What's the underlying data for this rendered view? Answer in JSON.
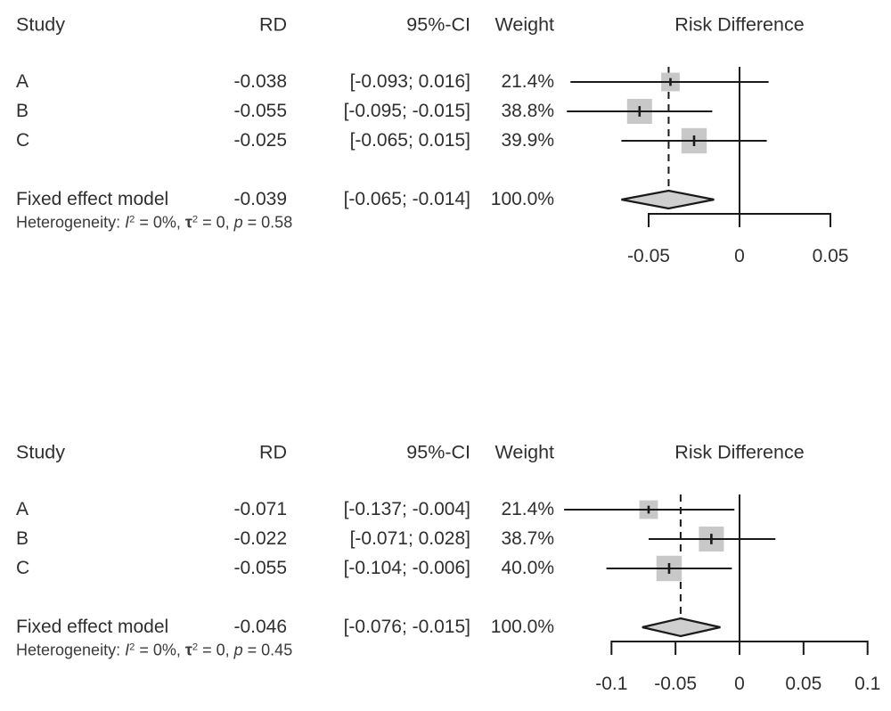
{
  "colors": {
    "marker_square": "#c8c8c8",
    "diamond_fill": "#cfcfcf",
    "plot_line": "#1a1a1a",
    "text": "#2f2f2f"
  },
  "chart_data": [
    {
      "type": "forest",
      "title": "Risk Difference",
      "columns": {
        "study": "Study",
        "rd": "RD",
        "ci": "95%-CI",
        "weight": "Weight"
      },
      "studies": [
        {
          "label": "A",
          "rd": -0.038,
          "ci_low": -0.093,
          "ci_high": 0.016,
          "rd_text": "-0.038",
          "ci_text": "[-0.093; 0.016]",
          "weight_pct": 21.4,
          "weight_text": "21.4%"
        },
        {
          "label": "B",
          "rd": -0.055,
          "ci_low": -0.095,
          "ci_high": -0.015,
          "rd_text": "-0.055",
          "ci_text": "[-0.095; -0.015]",
          "weight_pct": 38.8,
          "weight_text": "38.8%"
        },
        {
          "label": "C",
          "rd": -0.025,
          "ci_low": -0.065,
          "ci_high": 0.015,
          "rd_text": "-0.025",
          "ci_text": "[-0.065; 0.015]",
          "weight_pct": 39.9,
          "weight_text": "39.9%"
        }
      ],
      "pooled": {
        "label": "Fixed effect model",
        "rd": -0.039,
        "ci_low": -0.065,
        "ci_high": -0.014,
        "rd_text": "-0.039",
        "ci_text": "[-0.065; -0.014]",
        "weight_text": "100.0%"
      },
      "heterogeneity": [
        {
          "t": "Heterogeneity: "
        },
        {
          "t": "I",
          "s": "i"
        },
        {
          "t": "2",
          "s": "sup"
        },
        {
          "t": " = 0%, "
        },
        {
          "t": "τ",
          "s": "b"
        },
        {
          "t": "2",
          "s": "sup"
        },
        {
          "t": " = 0, "
        },
        {
          "t": "p",
          "s": "i"
        },
        {
          "t": " = 0.58"
        }
      ],
      "axis": {
        "min": -0.05,
        "max": 0.05,
        "ticks": [
          -0.05,
          0,
          0.05
        ],
        "tick_labels": [
          "-0.05",
          "0",
          "0.05"
        ]
      }
    },
    {
      "type": "forest",
      "title": "Risk Difference",
      "columns": {
        "study": "Study",
        "rd": "RD",
        "ci": "95%-CI",
        "weight": "Weight"
      },
      "studies": [
        {
          "label": "A",
          "rd": -0.071,
          "ci_low": -0.137,
          "ci_high": -0.004,
          "rd_text": "-0.071",
          "ci_text": "[-0.137; -0.004]",
          "weight_pct": 21.4,
          "weight_text": "21.4%"
        },
        {
          "label": "B",
          "rd": -0.022,
          "ci_low": -0.071,
          "ci_high": 0.028,
          "rd_text": "-0.022",
          "ci_text": "[-0.071; 0.028]",
          "weight_pct": 38.7,
          "weight_text": "38.7%"
        },
        {
          "label": "C",
          "rd": -0.055,
          "ci_low": -0.104,
          "ci_high": -0.006,
          "rd_text": "-0.055",
          "ci_text": "[-0.104; -0.006]",
          "weight_pct": 40.0,
          "weight_text": "40.0%"
        }
      ],
      "pooled": {
        "label": "Fixed effect model",
        "rd": -0.046,
        "ci_low": -0.076,
        "ci_high": -0.015,
        "rd_text": "-0.046",
        "ci_text": "[-0.076; -0.015]",
        "weight_text": "100.0%"
      },
      "heterogeneity": [
        {
          "t": "Heterogeneity: "
        },
        {
          "t": "I",
          "s": "i"
        },
        {
          "t": "2",
          "s": "sup"
        },
        {
          "t": " = 0%, "
        },
        {
          "t": "τ",
          "s": "b"
        },
        {
          "t": "2",
          "s": "sup"
        },
        {
          "t": " = 0, "
        },
        {
          "t": "p",
          "s": "i"
        },
        {
          "t": " = 0.45"
        }
      ],
      "axis": {
        "min": -0.1,
        "max": 0.1,
        "ticks": [
          -0.1,
          -0.05,
          0,
          0.05,
          0.1
        ],
        "tick_labels": [
          "-0.1",
          "-0.05",
          "0",
          "0.05",
          "0.1"
        ]
      }
    }
  ]
}
